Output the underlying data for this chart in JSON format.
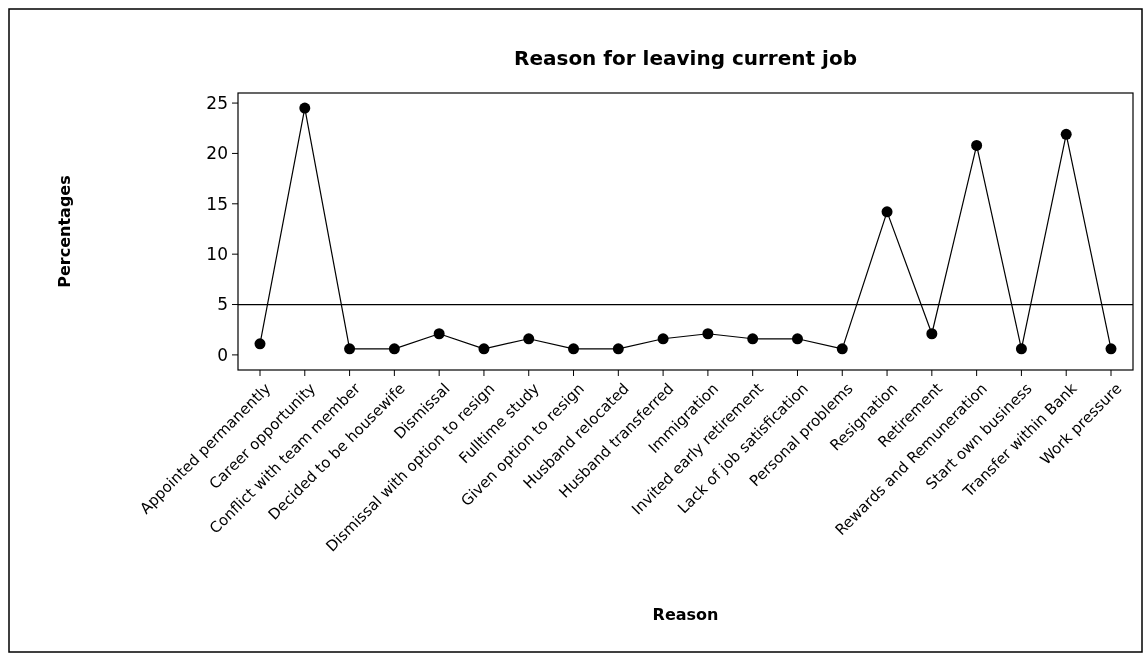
{
  "chart_data": {
    "type": "line",
    "title": "Reason for leaving current job",
    "xlabel": "Reason",
    "ylabel": "Percentages",
    "categories": [
      "Appointed permanently",
      "Career opportunity",
      "Conflict with team member",
      "Decided to be housewife",
      "Dismissal",
      "Dismissal with option to resign",
      "Fulltime study",
      "Given option to resign",
      "Husband relocated",
      "Husband transferred",
      "Immigration",
      "Invited early retirement",
      "Lack of job satisfication",
      "Personal problems",
      "Resignation",
      "Retirement",
      "Rewards and Remuneration",
      "Start own business",
      "Transfer within Bank",
      "Work pressure"
    ],
    "series": [
      {
        "color": "#000000",
        "values": [
          1.1,
          24.5,
          0.6,
          0.6,
          2.1,
          0.6,
          1.6,
          0.6,
          0.6,
          1.6,
          2.1,
          1.6,
          1.6,
          0.6,
          14.2,
          2.1,
          20.8,
          0.6,
          21.9,
          0.6
        ]
      }
    ],
    "ylim": [
      -1.5,
      26
    ],
    "yticks": [
      0,
      5,
      10,
      15,
      20,
      25
    ],
    "ref_lines": [
      {
        "axis": "y",
        "value": 5,
        "color": "#000000"
      }
    ],
    "grid": false,
    "marker": "circle",
    "line_style": "solid"
  }
}
